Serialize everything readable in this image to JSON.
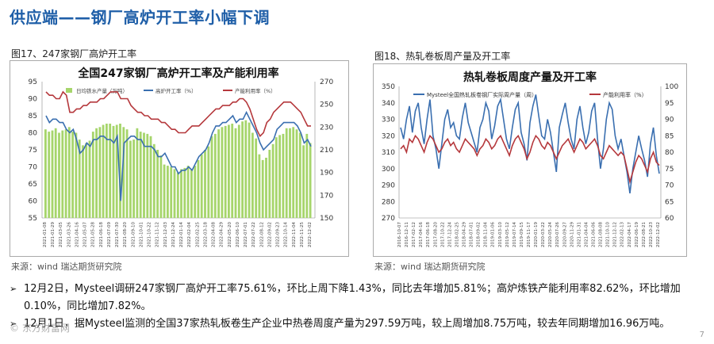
{
  "page_title": "供应端——钢厂高炉开工率小幅下调",
  "figure1": {
    "caption": "图17、247家钢厂高炉开工率",
    "source": "来源：wind   瑞达期货研究院"
  },
  "figure2": {
    "caption": "图18、热轧卷板周产量及开工率",
    "source": "来源：wind   瑞达期货研究院"
  },
  "bullets": [
    "12月2日，Mysteel调研247家钢厂高炉开工率75.61%，环比上周下降1.43%，同比去年增加5.81%；高炉炼铁产能利用率82.62%，环比增加0.10%，同比增加7.82%。",
    "12月1日，据Mysteel监测的全国37家热轧板卷生产企业中热卷周度产量为297.59万吨，较上周增加8.75万吨，较去年同期增加16.96万吨。"
  ],
  "watermark": "© 东方财富网",
  "page_number": "7",
  "colors": {
    "title": "#1f5fa8",
    "bar": "#a6d56b",
    "line_blue": "#3a6fb0",
    "line_red": "#b5383c"
  },
  "chart_data": [
    {
      "type": "bar",
      "title": "全国247家钢厂高炉开工率及产能利用率",
      "series": [
        {
          "name": "日均铁水产量（万吨）",
          "kind": "bar",
          "axis": "right"
        },
        {
          "name": "高炉开工率（%）",
          "kind": "line",
          "axis": "left"
        },
        {
          "name": "产能利用率（%）",
          "kind": "line",
          "axis": "left"
        }
      ],
      "left_ticks": [
        "95",
        "90",
        "85",
        "80",
        "75",
        "70",
        "65",
        "60",
        "55"
      ],
      "right_ticks": [
        "270",
        "250",
        "230",
        "210",
        "190",
        "170",
        "150"
      ],
      "ylim_left": [
        55,
        95
      ],
      "ylim_right": [
        150,
        270
      ],
      "x_labels": [
        "2021-01-08",
        "2021-01-29",
        "2021-03-05",
        "2021-03-26",
        "2021-04-16",
        "2021-05-07",
        "2021-05-28",
        "2021-06-18",
        "2021-07-09",
        "2021-07-30",
        "2021-08-20",
        "2021-09-10",
        "2021-10-01",
        "2021-10-22",
        "2021-11-12",
        "2021-12-03",
        "2021-12-24",
        "2022-01-14",
        "2022-02-04",
        "2022-02-25",
        "2022-03-18",
        "2022-04-08",
        "2022-04-29",
        "2022-05-20",
        "2022-06-10",
        "2022-07-01",
        "2022-07-22",
        "2022-08-12",
        "2022-09-02",
        "2022-09-23",
        "2022-10-14",
        "2022-11-04",
        "2022-11-25",
        "2022-12-02"
      ],
      "bar_values": [
        228,
        226,
        227,
        229,
        225,
        227,
        228,
        230,
        226,
        225,
        219,
        214,
        216,
        218,
        226,
        229,
        230,
        232,
        233,
        233,
        231,
        232,
        233,
        230,
        228,
        218,
        219,
        229,
        226,
        225,
        224,
        222,
        215,
        210,
        205,
        197,
        196,
        195,
        193,
        190,
        193,
        194,
        196,
        193,
        196,
        201,
        206,
        210,
        213,
        222,
        224,
        228,
        230,
        231,
        232,
        233,
        229,
        232,
        235,
        236,
        234,
        225,
        220,
        206,
        201,
        203,
        210,
        215,
        221,
        223,
        224,
        229,
        229,
        230,
        228,
        225,
        214,
        224,
        216
      ],
      "blue_values": [
        85,
        83,
        84,
        84,
        83,
        83,
        81,
        80,
        81,
        78,
        74,
        75,
        77,
        76,
        78,
        78,
        79,
        79,
        78,
        78,
        77,
        79,
        60,
        77,
        78,
        79,
        79,
        78,
        78,
        76,
        76,
        76,
        75,
        73,
        73,
        74,
        72,
        70,
        70,
        68,
        69,
        69,
        70,
        69,
        71,
        73,
        74,
        75,
        77,
        80,
        82,
        82,
        83,
        83,
        84,
        85,
        83,
        84,
        84,
        86,
        84,
        82,
        80,
        77,
        75,
        76,
        77,
        78,
        81,
        82,
        83,
        83,
        83,
        83,
        82,
        80,
        77,
        78,
        76
      ],
      "red_values": [
        92,
        91,
        91,
        90,
        90,
        92,
        91,
        86,
        86,
        87,
        87,
        88,
        88,
        89,
        89,
        89,
        90,
        90,
        91,
        92,
        92,
        92,
        90,
        90,
        90,
        88,
        87,
        86,
        86,
        85,
        85,
        84,
        84,
        84,
        83,
        83,
        82,
        81,
        81,
        80,
        80,
        80,
        81,
        82,
        82,
        82,
        83,
        84,
        85,
        86,
        87,
        87,
        88,
        88,
        88,
        89,
        89,
        90,
        90,
        89,
        87,
        84,
        81,
        79,
        80,
        83,
        84,
        86,
        87,
        88,
        89,
        89,
        89,
        88,
        87,
        86,
        84,
        82,
        82
      ]
    },
    {
      "type": "line",
      "title": "热轧卷板周度产量及开工率",
      "series": [
        {
          "name": "Mysteel全国热轧板卷钢厂实际周产量（周）",
          "axis": "left"
        },
        {
          "name": "产能利用率（%）",
          "axis": "right"
        }
      ],
      "left_ticks": [
        "350",
        "340",
        "330",
        "320",
        "310",
        "300",
        "290",
        "280",
        "270"
      ],
      "right_ticks": [
        "100",
        "95",
        "90",
        "85",
        "80",
        "75",
        "70",
        "65",
        "60"
      ],
      "ylim_left": [
        270,
        350
      ],
      "ylim_right": [
        60,
        100
      ],
      "x_labels": [
        "2016-10-07",
        "2016-12-11",
        "2017-02-12",
        "2017-04-16",
        "2017-06-18",
        "2017-08-20",
        "2017-10-22",
        "2017-12-24",
        "2018-02-25",
        "2018-04-29",
        "2018-07-01",
        "2018-09-02",
        "2018-11-04",
        "2019-01-06",
        "2019-03-10",
        "2019-05-12",
        "2019-07-14",
        "2019-09-15",
        "2019-11-17",
        "2020-01-19",
        "2020-03-22",
        "2020-05-24",
        "2020-07-26",
        "2020-09-27",
        "2020-11-29",
        "2021-01-31",
        "2021-04-04",
        "2021-06-06",
        "2021-08-08",
        "2021-10-10",
        "2021-12-12",
        "2022-02-13",
        "2022-04-17",
        "2022-06-19",
        "2022-08-21",
        "2022-10-23",
        "2022-12-02"
      ],
      "blue_values": [
        325,
        318,
        330,
        338,
        322,
        335,
        340,
        325,
        315,
        330,
        342,
        320,
        312,
        300,
        315,
        330,
        336,
        325,
        328,
        320,
        318,
        331,
        340,
        328,
        322,
        316,
        310,
        325,
        330,
        340,
        335,
        318,
        326,
        338,
        342,
        330,
        318,
        312,
        325,
        336,
        340,
        322,
        315,
        305,
        328,
        338,
        345,
        332,
        320,
        318,
        330,
        322,
        310,
        298,
        325,
        333,
        340,
        328,
        318,
        312,
        330,
        338,
        325,
        315,
        322,
        335,
        340,
        318,
        300,
        312,
        330,
        340,
        336,
        320,
        312,
        318,
        308,
        298,
        285,
        300,
        310,
        320,
        312,
        305,
        295,
        315,
        325,
        308,
        297
      ],
      "red_values": [
        81,
        82,
        80,
        84,
        83,
        85,
        84,
        82,
        80,
        83,
        85,
        84,
        82,
        80,
        81,
        83,
        84,
        82,
        83,
        81,
        80,
        82,
        84,
        83,
        82,
        81,
        79,
        81,
        82,
        84,
        83,
        81,
        82,
        84,
        85,
        83,
        81,
        79,
        82,
        84,
        85,
        83,
        81,
        78,
        80,
        83,
        85,
        84,
        82,
        81,
        83,
        82,
        80,
        78,
        80,
        82,
        83,
        84,
        82,
        80,
        82,
        84,
        83,
        81,
        82,
        83,
        84,
        82,
        79,
        78,
        80,
        82,
        81,
        80,
        79,
        80,
        79,
        75,
        71,
        74,
        77,
        79,
        78,
        76,
        74,
        78,
        80,
        77,
        76
      ]
    }
  ]
}
